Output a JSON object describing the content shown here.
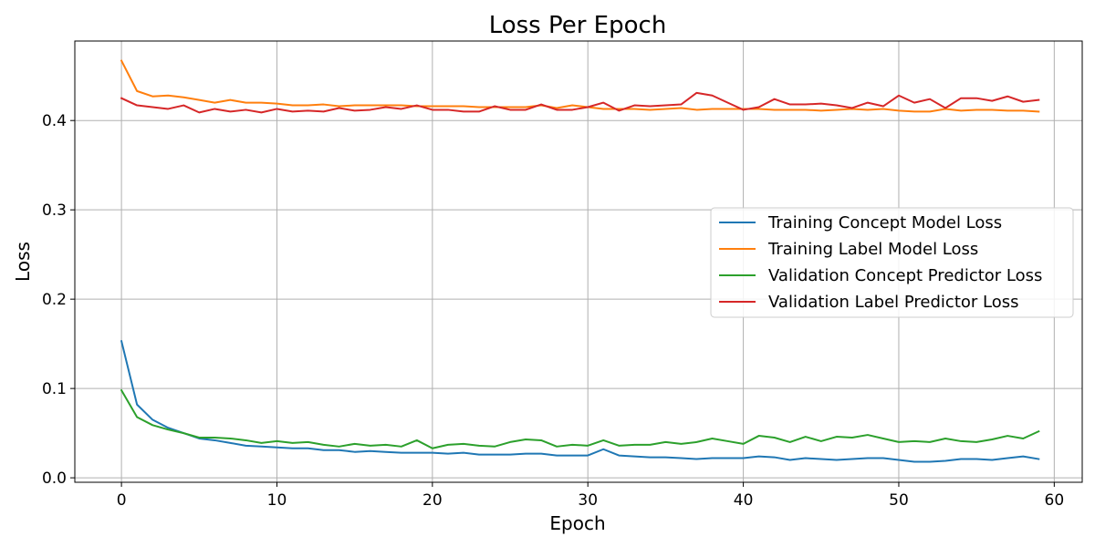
{
  "chart_data": {
    "type": "line",
    "title": "Loss Per Epoch",
    "xlabel": "Epoch",
    "ylabel": "Loss",
    "xlim": [
      -3,
      61.8
    ],
    "ylim": [
      -0.005,
      0.489
    ],
    "x_ticks": [
      0,
      10,
      20,
      30,
      40,
      50,
      60
    ],
    "y_ticks": [
      0.0,
      0.1,
      0.2,
      0.3,
      0.4
    ],
    "x_tick_labels": [
      "0",
      "10",
      "20",
      "30",
      "40",
      "50",
      "60"
    ],
    "y_tick_labels": [
      "0.0",
      "0.1",
      "0.2",
      "0.3",
      "0.4"
    ],
    "grid": true,
    "legend_position": "center-right",
    "x": [
      0,
      1,
      2,
      3,
      4,
      5,
      6,
      7,
      8,
      9,
      10,
      11,
      12,
      13,
      14,
      15,
      16,
      17,
      18,
      19,
      20,
      21,
      22,
      23,
      24,
      25,
      26,
      27,
      28,
      29,
      30,
      31,
      32,
      33,
      34,
      35,
      36,
      37,
      38,
      39,
      40,
      41,
      42,
      43,
      44,
      45,
      46,
      47,
      48,
      49,
      50,
      51,
      52,
      53,
      54,
      55,
      56,
      57,
      58,
      59
    ],
    "series": [
      {
        "name": "Training Concept Model Loss",
        "color": "#1f77b4",
        "values": [
          0.153,
          0.082,
          0.065,
          0.056,
          0.05,
          0.044,
          0.042,
          0.039,
          0.036,
          0.035,
          0.034,
          0.033,
          0.033,
          0.031,
          0.031,
          0.029,
          0.03,
          0.029,
          0.028,
          0.028,
          0.028,
          0.027,
          0.028,
          0.026,
          0.026,
          0.026,
          0.027,
          0.027,
          0.025,
          0.025,
          0.025,
          0.032,
          0.025,
          0.024,
          0.023,
          0.023,
          0.022,
          0.021,
          0.022,
          0.022,
          0.022,
          0.024,
          0.023,
          0.02,
          0.022,
          0.021,
          0.02,
          0.021,
          0.022,
          0.022,
          0.02,
          0.018,
          0.018,
          0.019,
          0.021,
          0.021,
          0.02,
          0.022,
          0.024,
          0.021
        ]
      },
      {
        "name": "Training Label Model Loss",
        "color": "#ff7f0e",
        "values": [
          0.467,
          0.433,
          0.427,
          0.428,
          0.426,
          0.423,
          0.42,
          0.423,
          0.42,
          0.42,
          0.419,
          0.417,
          0.417,
          0.418,
          0.416,
          0.417,
          0.417,
          0.417,
          0.417,
          0.416,
          0.416,
          0.416,
          0.416,
          0.415,
          0.415,
          0.415,
          0.415,
          0.417,
          0.414,
          0.417,
          0.415,
          0.413,
          0.413,
          0.413,
          0.412,
          0.413,
          0.414,
          0.412,
          0.413,
          0.413,
          0.413,
          0.413,
          0.412,
          0.412,
          0.412,
          0.411,
          0.412,
          0.413,
          0.412,
          0.413,
          0.411,
          0.41,
          0.41,
          0.413,
          0.411,
          0.412,
          0.412,
          0.411,
          0.411,
          0.41
        ]
      },
      {
        "name": "Validation Concept Predictor Loss",
        "color": "#2ca02c",
        "values": [
          0.098,
          0.068,
          0.059,
          0.054,
          0.05,
          0.045,
          0.045,
          0.044,
          0.042,
          0.039,
          0.041,
          0.039,
          0.04,
          0.037,
          0.035,
          0.038,
          0.036,
          0.037,
          0.035,
          0.042,
          0.033,
          0.037,
          0.038,
          0.036,
          0.035,
          0.04,
          0.043,
          0.042,
          0.035,
          0.037,
          0.036,
          0.042,
          0.036,
          0.037,
          0.037,
          0.04,
          0.038,
          0.04,
          0.044,
          0.041,
          0.038,
          0.047,
          0.045,
          0.04,
          0.046,
          0.041,
          0.046,
          0.045,
          0.048,
          0.044,
          0.04,
          0.041,
          0.04,
          0.044,
          0.041,
          0.04,
          0.043,
          0.047,
          0.044,
          0.052
        ]
      },
      {
        "name": "Validation Label Predictor Loss",
        "color": "#d62728",
        "values": [
          0.425,
          0.417,
          0.415,
          0.413,
          0.417,
          0.409,
          0.413,
          0.41,
          0.412,
          0.409,
          0.413,
          0.41,
          0.411,
          0.41,
          0.414,
          0.411,
          0.412,
          0.415,
          0.413,
          0.417,
          0.412,
          0.412,
          0.41,
          0.41,
          0.416,
          0.412,
          0.412,
          0.418,
          0.412,
          0.412,
          0.415,
          0.42,
          0.411,
          0.417,
          0.416,
          0.417,
          0.418,
          0.431,
          0.428,
          0.42,
          0.412,
          0.415,
          0.424,
          0.418,
          0.418,
          0.419,
          0.417,
          0.414,
          0.42,
          0.416,
          0.428,
          0.42,
          0.424,
          0.414,
          0.425,
          0.425,
          0.422,
          0.427,
          0.421,
          0.423
        ]
      }
    ]
  }
}
